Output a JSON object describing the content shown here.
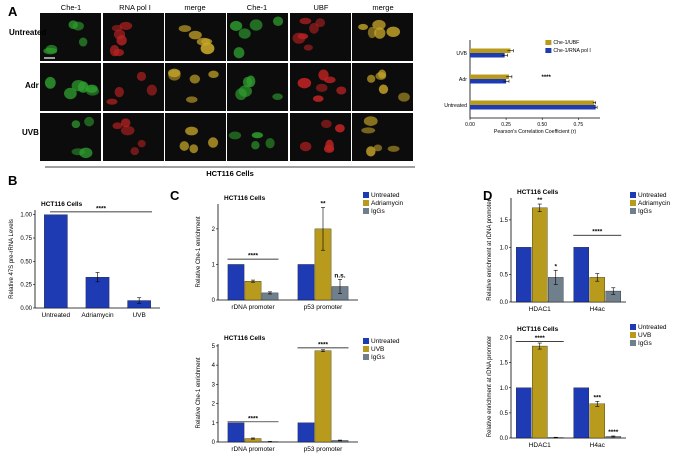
{
  "panel_labels": [
    "A",
    "B",
    "C",
    "D"
  ],
  "colors": {
    "blue": "#1f3bb3",
    "gold": "#b89a1c",
    "gray": "#6f7f8c",
    "green": "#2f6f4e",
    "cell_green": "#2f9e2f",
    "cell_red": "#b82222",
    "cell_yellow": "#c9a72a"
  },
  "panel_a": {
    "col_headers": [
      "Che-1",
      "RNA pol I",
      "merge",
      "Che-1",
      "UBF",
      "merge"
    ],
    "row_labels": [
      "Untreated",
      "Adr",
      "UVB"
    ],
    "cell_line": "HCT116 Cells"
  },
  "chart_data": [
    {
      "id": "a_corr",
      "type": "bar",
      "orientation": "horizontal",
      "categories": [
        "UVB",
        "Adr",
        "Untreated"
      ],
      "series": [
        {
          "name": "Che-1/UBF",
          "values": [
            0.28,
            0.27,
            0.86
          ]
        },
        {
          "name": "Che-1/RNA pol I",
          "values": [
            0.24,
            0.25,
            0.87
          ]
        }
      ],
      "errors": [
        [
          0.02,
          0.02,
          0.01
        ],
        [
          0.02,
          0.02,
          0.01
        ]
      ],
      "xlabel": "Pearson's Correlation Coefficient (r)",
      "xlim": [
        0,
        0.9
      ],
      "xticks": [
        "0.00",
        "0.25",
        "0.50",
        "0.75"
      ],
      "annotation": "****"
    },
    {
      "id": "b_47s",
      "type": "bar",
      "title": "HCT116 Cells",
      "categories": [
        "Untreated",
        "Adriamycin",
        "UVB"
      ],
      "values": [
        1.0,
        0.33,
        0.08
      ],
      "errors": [
        0,
        0.05,
        0.03
      ],
      "ylabel": "Relative 47S pre-rRNA Levels",
      "ylim": [
        0,
        1.05
      ],
      "yticks": [
        "0.00",
        "0.25",
        "0.50",
        "0.75",
        "1.00"
      ],
      "annotation": "****"
    },
    {
      "id": "c_adr",
      "type": "bar",
      "title": "HCT116 Cells",
      "categories": [
        "rDNA promoter",
        "p53 promoter"
      ],
      "series": [
        {
          "name": "Untreated",
          "values": [
            1.0,
            1.0
          ]
        },
        {
          "name": "Adriamycin",
          "values": [
            0.53,
            2.0
          ]
        },
        {
          "name": "IgGs",
          "values": [
            0.2,
            0.38
          ]
        }
      ],
      "errors": [
        [
          0,
          0
        ],
        [
          0.03,
          0.6
        ],
        [
          0.03,
          0.2
        ]
      ],
      "ylabel": "Relative Che-1 enrichment",
      "ylim": [
        0,
        2.7
      ],
      "yticks": [
        "0",
        "1",
        "2"
      ],
      "annotations": [
        "****",
        "**",
        "n.s."
      ]
    },
    {
      "id": "c_uvb",
      "type": "bar",
      "title": "HCT116 Cells",
      "categories": [
        "rDNA promoter",
        "p53 promoter"
      ],
      "series": [
        {
          "name": "Untreated",
          "values": [
            1.0,
            1.0
          ]
        },
        {
          "name": "UVB",
          "values": [
            0.18,
            4.75
          ]
        },
        {
          "name": "IgGs",
          "values": [
            0.02,
            0.08
          ]
        }
      ],
      "errors": [
        [
          0,
          0
        ],
        [
          0.03,
          0.05
        ],
        [
          0.01,
          0.02
        ]
      ],
      "ylabel": "Relative Che-1 enrichment",
      "ylim": [
        0,
        5.1
      ],
      "yticks": [
        "0",
        "1",
        "2",
        "3",
        "4",
        "5"
      ],
      "annotations": [
        "****",
        "****"
      ]
    },
    {
      "id": "d_adr",
      "type": "bar",
      "title": "HCT116 Cells",
      "categories": [
        "HDAC1",
        "H4ac"
      ],
      "series": [
        {
          "name": "Untreated",
          "values": [
            1.0,
            1.0
          ]
        },
        {
          "name": "Adriamycin",
          "values": [
            1.72,
            0.45
          ]
        },
        {
          "name": "IgGs",
          "values": [
            0.45,
            0.2
          ]
        }
      ],
      "errors": [
        [
          0,
          0
        ],
        [
          0.07,
          0.07
        ],
        [
          0.13,
          0.06
        ]
      ],
      "ylabel": "Relative enrichment at rDNA promoter",
      "ylim": [
        0,
        1.9
      ],
      "yticks": [
        "0.0",
        "0.5",
        "1.0",
        "1.5"
      ],
      "annotations": [
        "**",
        "*",
        "****"
      ]
    },
    {
      "id": "d_uvb",
      "type": "bar",
      "title": "HCT116 Cells",
      "categories": [
        "HDAC1",
        "H4ac"
      ],
      "series": [
        {
          "name": "Untreated",
          "values": [
            1.0,
            1.0
          ]
        },
        {
          "name": "UVB",
          "values": [
            1.83,
            0.68
          ]
        },
        {
          "name": "IgGs",
          "values": [
            0.01,
            0.03
          ]
        }
      ],
      "errors": [
        [
          0,
          0
        ],
        [
          0.06,
          0.05
        ],
        [
          0.005,
          0.01
        ]
      ],
      "ylabel": "Relative enrichment at rDNA promoter",
      "ylim": [
        0,
        2.05
      ],
      "yticks": [
        "0.0",
        "0.5",
        "1.0",
        "1.5",
        "2.0"
      ],
      "annotations": [
        "****",
        "***",
        "****"
      ]
    }
  ]
}
